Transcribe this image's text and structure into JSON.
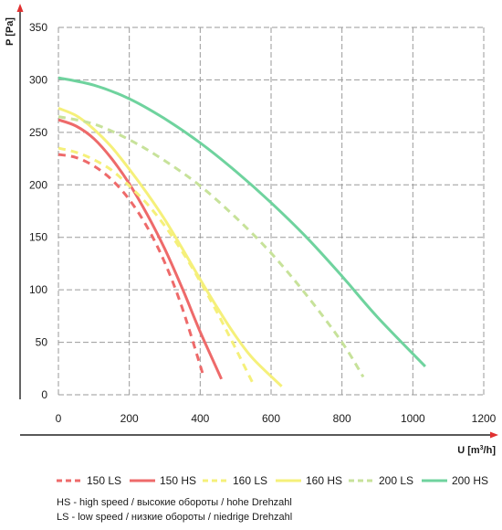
{
  "chart_data": {
    "type": "line",
    "title": "",
    "xlabel": "U [m³/h]",
    "ylabel": "P [Pa]",
    "xlim": [
      0,
      1200
    ],
    "ylim": [
      0,
      350
    ],
    "xticks": [
      0,
      200,
      400,
      600,
      800,
      1000,
      1200
    ],
    "yticks": [
      0,
      50,
      100,
      150,
      200,
      250,
      300,
      350
    ],
    "grid": true,
    "legend_position": "bottom",
    "series": [
      {
        "name": "150 LS",
        "color": "#ee6a6a",
        "dashed": true,
        "x": [
          0,
          50,
          100,
          150,
          200,
          250,
          300,
          350,
          410
        ],
        "y": [
          229,
          226,
          218,
          205,
          186,
          160,
          126,
          82,
          17
        ]
      },
      {
        "name": "150 HS",
        "color": "#ee6a6a",
        "dashed": false,
        "x": [
          0,
          50,
          100,
          150,
          200,
          250,
          300,
          350,
          400,
          460
        ],
        "y": [
          262,
          256,
          244,
          225,
          201,
          172,
          139,
          101,
          60,
          15
        ]
      },
      {
        "name": "160 LS",
        "color": "#f5f07a",
        "dashed": true,
        "x": [
          0,
          50,
          100,
          150,
          200,
          250,
          300,
          350,
          400,
          450,
          500,
          550
        ],
        "y": [
          235,
          231,
          224,
          214,
          199,
          182,
          161,
          136,
          108,
          77,
          44,
          10
        ]
      },
      {
        "name": "160 HS",
        "color": "#f5f07a",
        "dashed": false,
        "x": [
          0,
          50,
          100,
          150,
          200,
          250,
          300,
          350,
          400,
          450,
          500,
          550,
          630
        ],
        "y": [
          273,
          266,
          253,
          236,
          215,
          192,
          167,
          139,
          110,
          82,
          56,
          34,
          8
        ]
      },
      {
        "name": "200 LS",
        "color": "#c7e29a",
        "dashed": true,
        "x": [
          0,
          100,
          200,
          300,
          400,
          500,
          600,
          700,
          800,
          860
        ],
        "y": [
          265,
          258,
          243,
          223,
          199,
          169,
          135,
          95,
          50,
          17
        ]
      },
      {
        "name": "200 HS",
        "color": "#6fd39e",
        "dashed": false,
        "x": [
          0,
          100,
          200,
          300,
          400,
          500,
          600,
          700,
          800,
          900,
          1035
        ],
        "y": [
          302,
          295,
          282,
          263,
          240,
          213,
          183,
          150,
          113,
          74,
          27
        ]
      }
    ]
  },
  "legend": {
    "items": [
      {
        "label": "150 LS"
      },
      {
        "label": "150 HS"
      },
      {
        "label": "160 LS"
      },
      {
        "label": "160 HS"
      },
      {
        "label": "200 LS"
      },
      {
        "label": "200 HS"
      }
    ]
  },
  "axes": {
    "x_title_main": "U [m",
    "x_title_sup": "3",
    "x_title_end": "/h]",
    "y_title": "P [Pa]",
    "arrow_color": "#e03030"
  },
  "notes": {
    "hs": "HS -  high speed / высокие обороты / hohe Drehzahl",
    "ls": "LS - low speed / низкие обороты / niedrige Drehzahl"
  }
}
